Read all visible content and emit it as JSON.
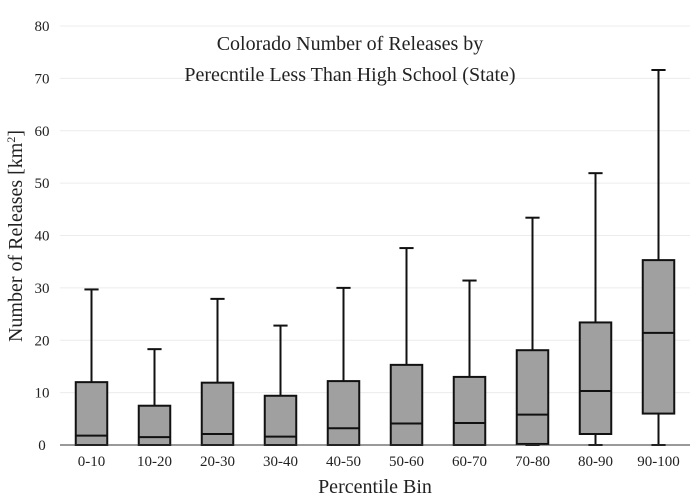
{
  "chart_data": {
    "type": "box",
    "title_lines": [
      "Colorado Number of Releases by",
      "Perecntile Less Than High School (State)"
    ],
    "xlabel": "Percentile Bin",
    "ylabel_main": "Number of Releases  [km",
    "ylabel_sup": "2",
    "ylabel_end": "]",
    "ylim": [
      0,
      80
    ],
    "yticks": [
      0,
      10,
      20,
      30,
      40,
      50,
      60,
      70,
      80
    ],
    "grid": true,
    "box_color": "#a0a0a0",
    "categories": [
      "0-10",
      "10-20",
      "20-30",
      "30-40",
      "40-50",
      "50-60",
      "60-70",
      "70-80",
      "80-90",
      "90-100"
    ],
    "boxes": [
      {
        "category": "0-10",
        "min": 0,
        "q1": 0,
        "median": 1.8,
        "q3": 12.0,
        "max": 29.7
      },
      {
        "category": "10-20",
        "min": 0,
        "q1": 0,
        "median": 1.5,
        "q3": 7.5,
        "max": 18.3
      },
      {
        "category": "20-30",
        "min": 0,
        "q1": 0,
        "median": 2.1,
        "q3": 11.9,
        "max": 27.9
      },
      {
        "category": "30-40",
        "min": 0,
        "q1": 0,
        "median": 1.6,
        "q3": 9.4,
        "max": 22.8
      },
      {
        "category": "40-50",
        "min": 0,
        "q1": 0,
        "median": 3.2,
        "q3": 12.2,
        "max": 30.0
      },
      {
        "category": "50-60",
        "min": 0,
        "q1": 0,
        "median": 4.1,
        "q3": 15.3,
        "max": 37.6
      },
      {
        "category": "60-70",
        "min": 0,
        "q1": 0,
        "median": 4.2,
        "q3": 13.0,
        "max": 31.4
      },
      {
        "category": "70-80",
        "min": 0,
        "q1": 0.2,
        "median": 5.8,
        "q3": 18.1,
        "max": 43.4
      },
      {
        "category": "80-90",
        "min": 0,
        "q1": 2.1,
        "median": 10.3,
        "q3": 23.4,
        "max": 51.9
      },
      {
        "category": "90-100",
        "min": 0,
        "q1": 6.0,
        "median": 21.4,
        "q3": 35.3,
        "max": 71.6
      }
    ]
  }
}
